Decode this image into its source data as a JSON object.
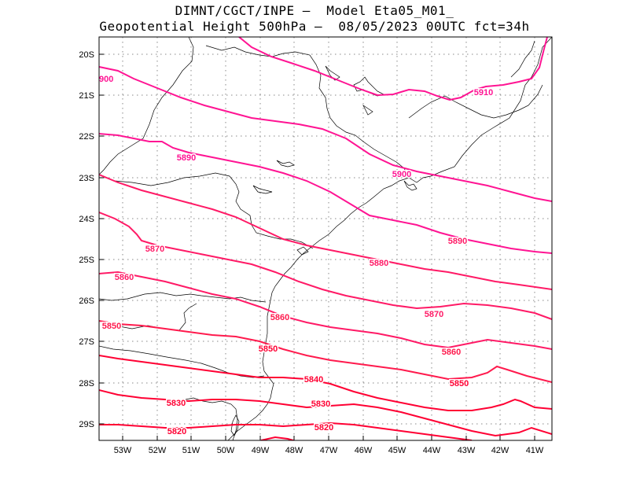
{
  "title": {
    "line1": "DIMNT/CGCT/INPE –  Model Eta05_M01_",
    "line2": "Geopotential Height 500hPa –  08/05/2023 00UTC fct=34h"
  },
  "axes": {
    "x_ticks": [
      "53W",
      "52W",
      "51W",
      "50W",
      "49W",
      "48W",
      "47W",
      "46W",
      "45W",
      "44W",
      "43W",
      "42W",
      "41W"
    ],
    "y_ticks": [
      "20S",
      "21S",
      "22S",
      "23S",
      "24S",
      "25S",
      "26S",
      "27S",
      "28S",
      "29S"
    ]
  },
  "colors": {
    "magenta": "#ff1493",
    "mid": "#ff1a66",
    "red": "#ff0030",
    "coast": "#000000",
    "grid": "#888888"
  },
  "contour_labels": [
    {
      "text": "900"
    },
    {
      "text": "5910"
    },
    {
      "text": "5890"
    },
    {
      "text": "5900"
    },
    {
      "text": "5890"
    },
    {
      "text": "5870"
    },
    {
      "text": "5880"
    },
    {
      "text": "5860"
    },
    {
      "text": "5870"
    },
    {
      "text": "5860"
    },
    {
      "text": "5850"
    },
    {
      "text": "5860"
    },
    {
      "text": "5850"
    },
    {
      "text": "5840"
    },
    {
      "text": "5850"
    },
    {
      "text": "5830"
    },
    {
      "text": "5830"
    },
    {
      "text": "5820"
    },
    {
      "text": "5820"
    }
  ]
}
